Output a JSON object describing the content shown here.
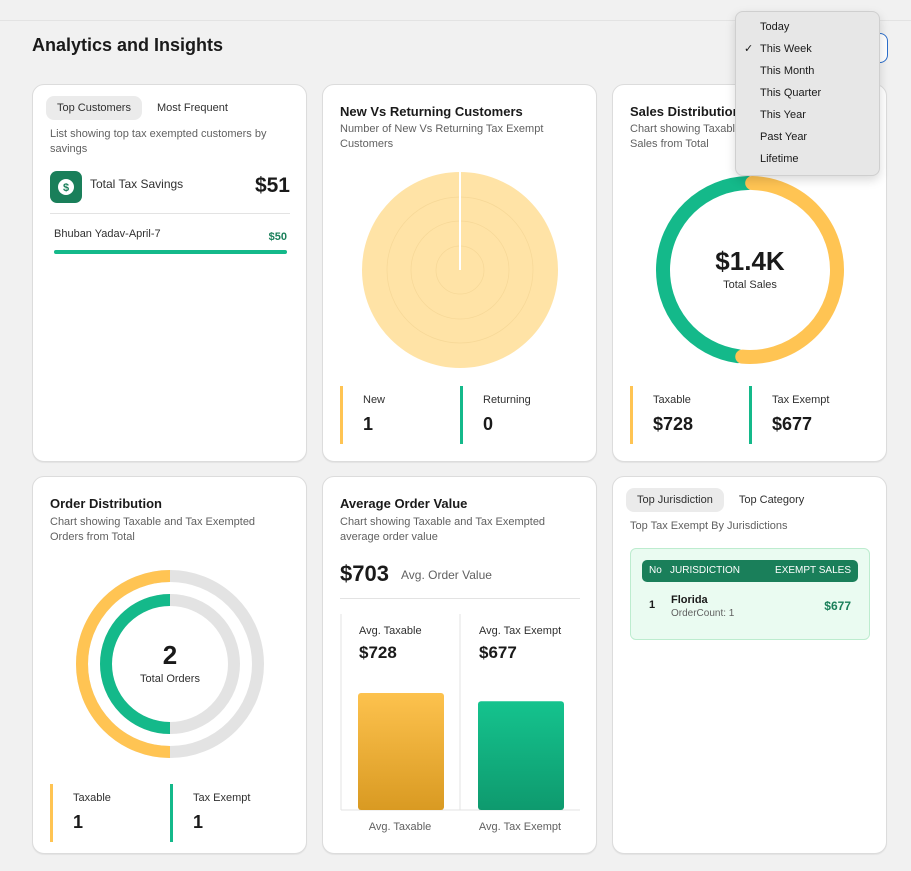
{
  "page": {
    "title": "Analytics and Insights"
  },
  "period_menu": {
    "selected_index": 1,
    "items": [
      "Today",
      "This Week",
      "This Month",
      "This Quarter",
      "This Year",
      "Past Year",
      "Lifetime"
    ]
  },
  "top_customers": {
    "tabs": [
      "Top Customers",
      "Most Frequent"
    ],
    "description": "List showing top tax exempted customers by savings",
    "savings_label": "Total Tax Savings",
    "savings_value": "$51",
    "rows": [
      {
        "name": "Bhuban Yadav-April-7",
        "amount": "$50",
        "fraction": 1.0
      }
    ]
  },
  "new_vs_returning": {
    "title": "New Vs Returning Customers",
    "description": "Number of New Vs Returning Tax Exempt Customers",
    "new_label": "New",
    "new_value": "1",
    "returning_label": "Returning",
    "returning_value": "0"
  },
  "sales_distribution": {
    "title": "Sales Distribution",
    "description": "Chart showing Taxable and Tax Exempted Sales from Total",
    "center_value": "$1.4K",
    "center_label": "Total Sales",
    "taxable_label": "Taxable",
    "taxable_value": "$728",
    "exempt_label": "Tax Exempt",
    "exempt_value": "$677"
  },
  "order_distribution": {
    "title": "Order Distribution",
    "description": "Chart showing Taxable and Tax Exempted Orders from Total",
    "center_value": "2",
    "center_label": "Total Orders",
    "taxable_label": "Taxable",
    "taxable_value": "1",
    "exempt_label": "Tax Exempt",
    "exempt_value": "1"
  },
  "average_order": {
    "title": "Average Order Value",
    "description": "Chart showing Taxable and Tax Exempted average order value",
    "value": "$703",
    "value_label": "Avg. Order Value",
    "taxable_label": "Avg. Taxable",
    "taxable_value": "$728",
    "exempt_label": "Avg. Tax Exempt",
    "exempt_value": "$677",
    "x_taxable": "Avg. Taxable",
    "x_exempt": "Avg. Tax Exempt"
  },
  "jurisdiction": {
    "tabs": [
      "Top Jurisdiction",
      "Top Category"
    ],
    "description": "Top Tax Exempt By Jurisdictions",
    "headers": [
      "No",
      "JURISDICTION",
      "EXEMPT SALES"
    ],
    "rows": [
      {
        "no": "1",
        "name": "Florida",
        "order_count": "OrderCount: 1",
        "sales": "$677"
      }
    ]
  },
  "colors": {
    "yellow": "#ffc453",
    "green": "#14b98a",
    "dark_green": "#1a7f5a",
    "blue": "#2c6ecb"
  },
  "chart_data": [
    {
      "type": "pie",
      "title": "New Vs Returning Customers",
      "categories": [
        "New",
        "Returning"
      ],
      "values": [
        1,
        0
      ]
    },
    {
      "type": "pie",
      "title": "Sales Distribution",
      "categories": [
        "Taxable",
        "Tax Exempt"
      ],
      "values": [
        728,
        677
      ]
    },
    {
      "type": "pie",
      "title": "Order Distribution",
      "categories": [
        "Taxable",
        "Tax Exempt"
      ],
      "values": [
        1,
        1
      ]
    },
    {
      "type": "bar",
      "title": "Average Order Value",
      "categories": [
        "Avg. Taxable",
        "Avg. Tax Exempt"
      ],
      "values": [
        728,
        677
      ]
    }
  ]
}
